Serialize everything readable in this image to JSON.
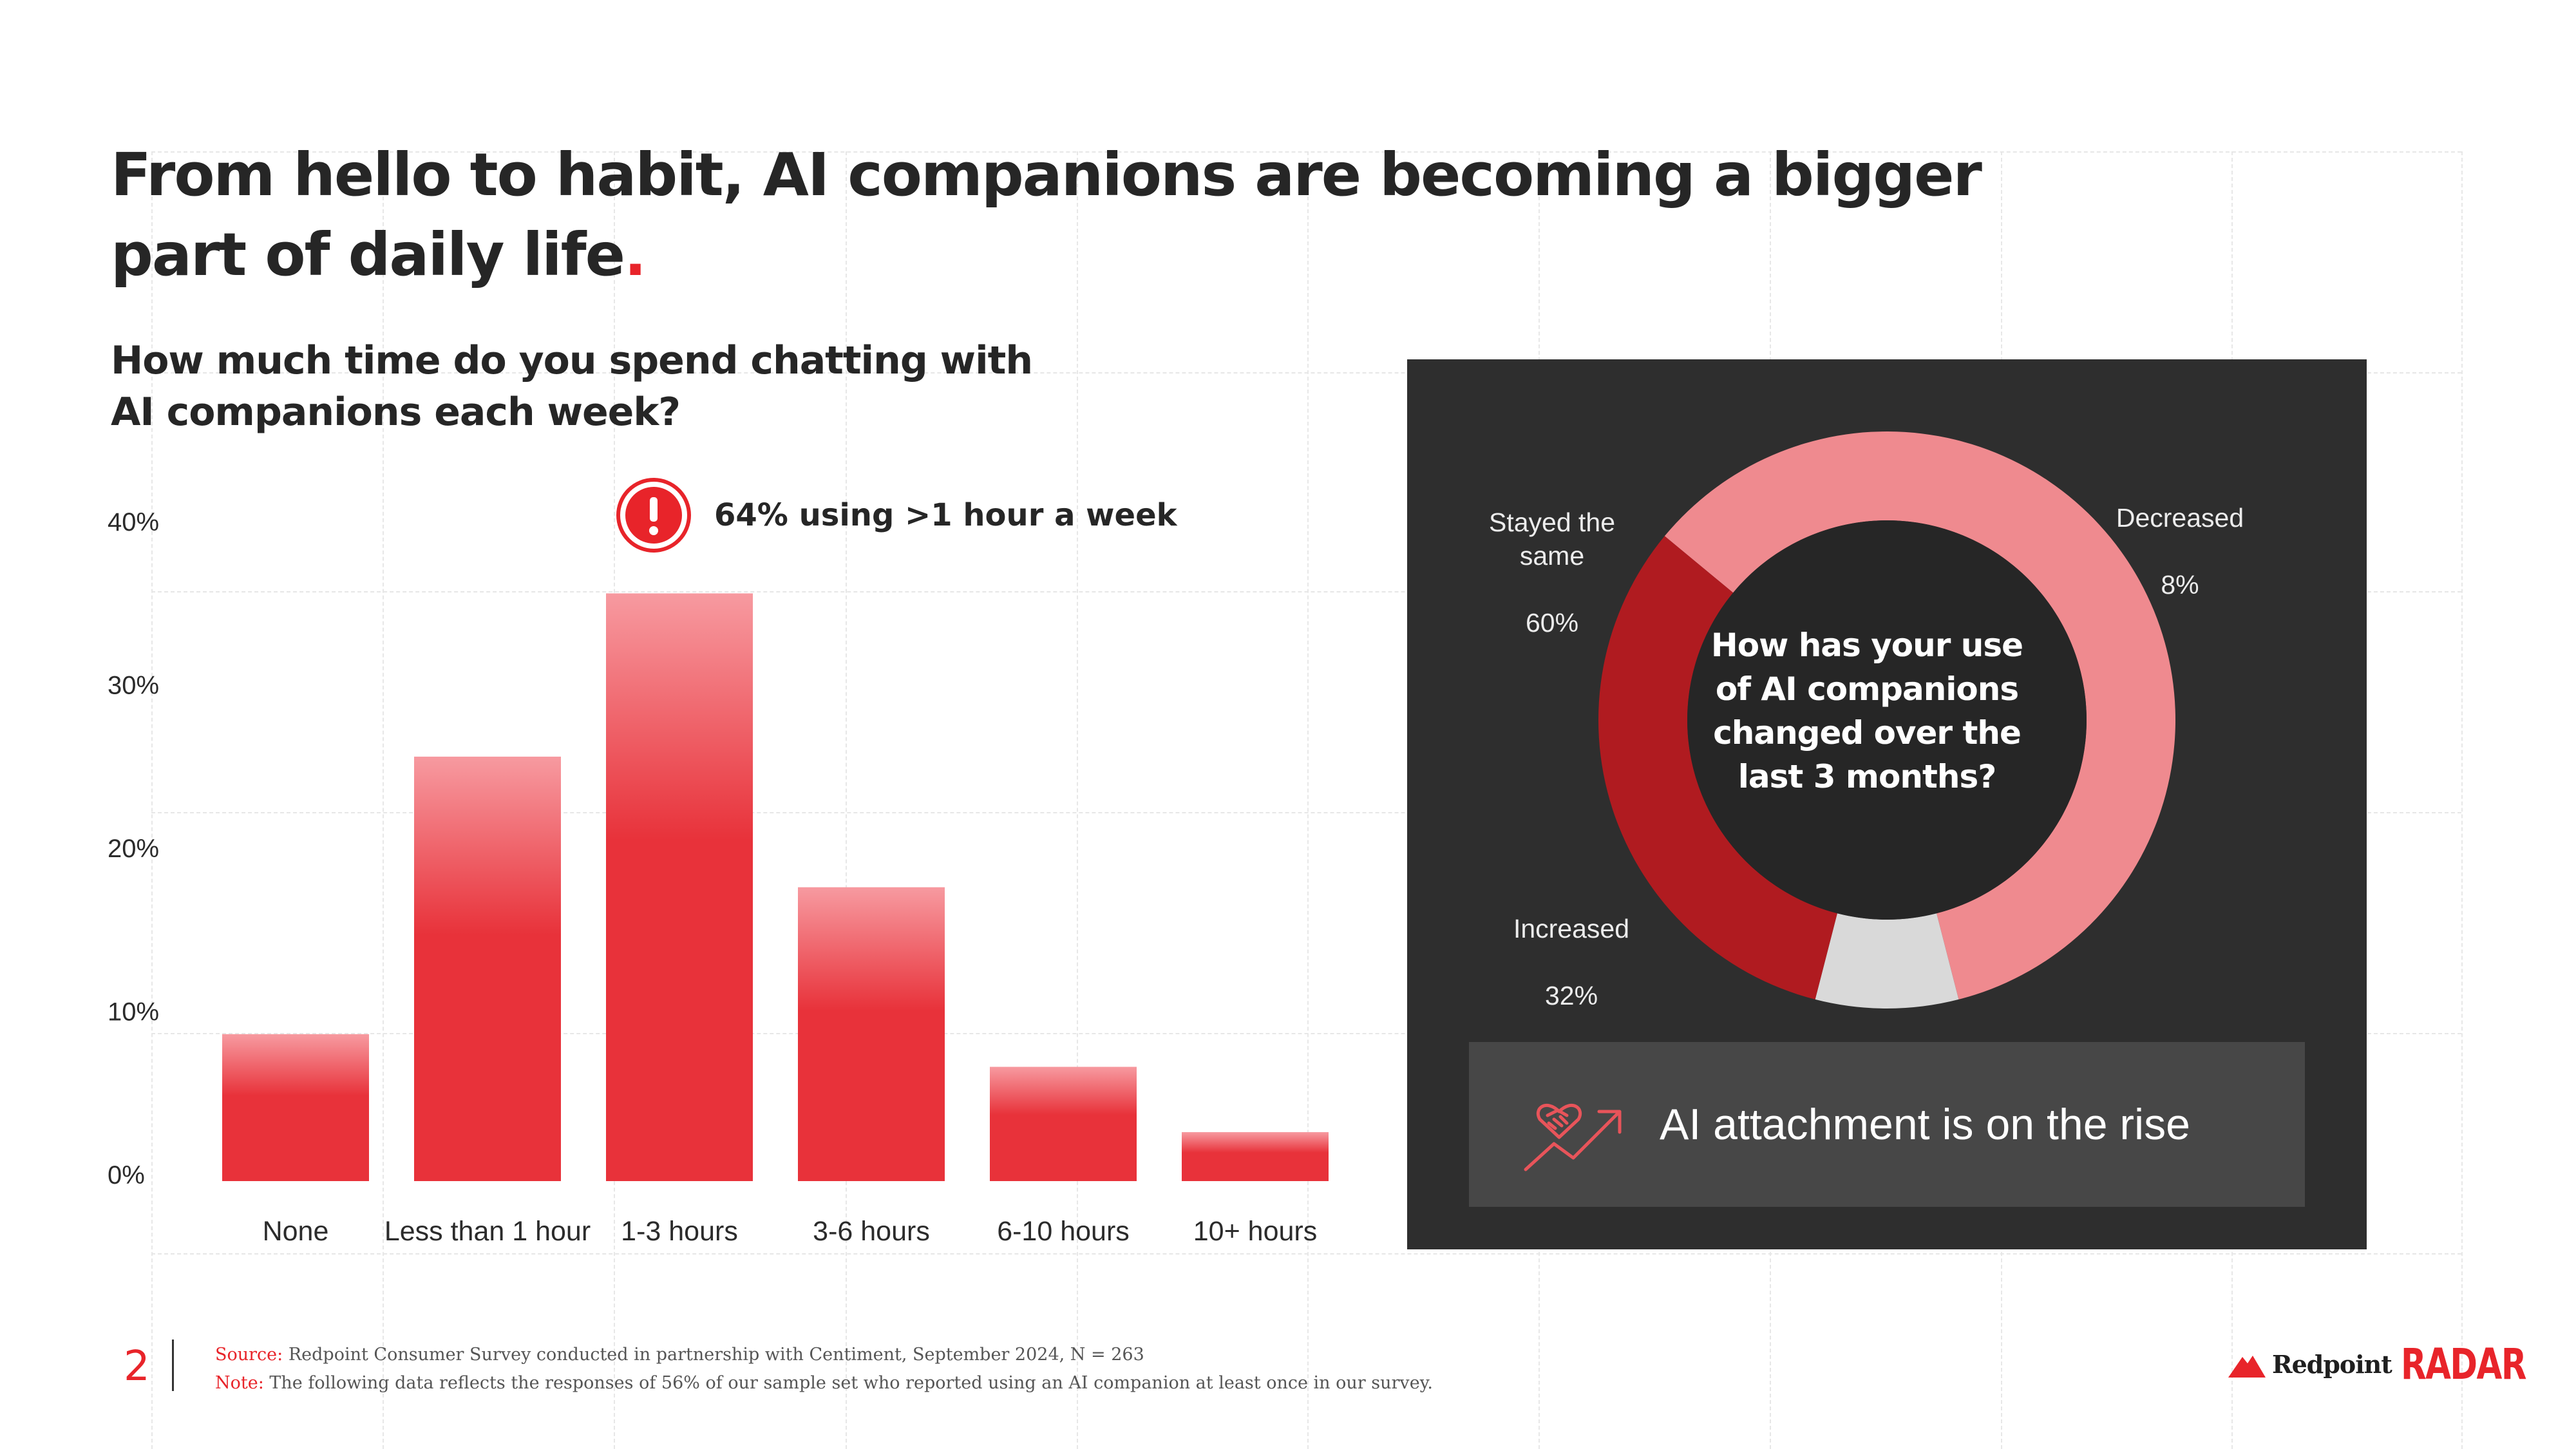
{
  "page": {
    "title_text": "From hello to habit, AI companions are becoming a bigger part of daily life",
    "title_dot": ".",
    "accent_color": "#e8242a",
    "page_number": "2"
  },
  "bar_section": {
    "question": "How much time do you spend chatting with AI companions each week?",
    "callout_icon": "exclamation-circle-icon",
    "callout": "64% using >1 hour a week"
  },
  "chart_data": [
    {
      "type": "bar",
      "title": "How much time do you spend chatting with AI companions each week?",
      "categories": [
        "None",
        "Less than 1 hour",
        "1-3 hours",
        "3-6 hours",
        "6-10 hours",
        "10+ hours"
      ],
      "values": [
        9,
        26,
        36,
        18,
        7,
        3
      ],
      "ytick_labels": [
        "0%",
        "10%",
        "20%",
        "30%",
        "40%"
      ],
      "ylim": [
        0,
        40
      ],
      "unit": "%",
      "bar_color": "#e8323a",
      "bar_color_top": "#f79aa0",
      "grid": true
    },
    {
      "type": "pie",
      "variant": "donut",
      "title": "How has your use of AI companions changed over the last 3 months?",
      "labels": [
        "Stayed the same",
        "Decreased",
        "Increased"
      ],
      "values": [
        60,
        8,
        32
      ],
      "value_labels": [
        "60%",
        "8%",
        "32%"
      ],
      "slice_colors": [
        "#ef8a8f",
        "#d9d9d9",
        "#b01b20"
      ],
      "background": "#2e2e2e"
    }
  ],
  "banner": {
    "icon": "handshake-trend-up-icon",
    "text": "AI attachment is on the rise"
  },
  "footer": {
    "source_label": "Source:",
    "source_text": " Redpoint Consumer Survey conducted in partnership with Centiment, September 2024, N = 263",
    "note_label": "Note:",
    "note_text": " The following data reflects the responses of 56% of our sample set who reported using an AI companion at least once in our survey."
  },
  "brand": {
    "logo_icon": "redpoint-mountain-icon",
    "name": "Redpoint",
    "product": "RADAR"
  }
}
